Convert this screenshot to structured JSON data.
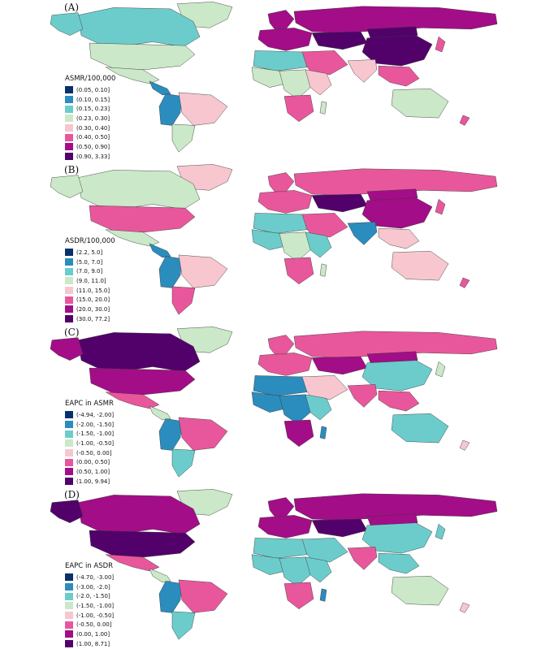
{
  "colors": [
    "#08306b",
    "#2b8cbe",
    "#6ccccc",
    "#cbe8c8",
    "#f7c6cf",
    "#e8579b",
    "#a30d87",
    "#52006a"
  ],
  "panels": [
    {
      "label": "(A)",
      "legend_title": "ASMR/100,000",
      "classes": [
        "(0.05, 0.10]",
        "(0.10, 0.15]",
        "(0.15, 0.23]",
        "(0.23, 0.30]",
        "(0.30, 0.40]",
        "(0.40, 0.50]",
        "(0.50, 0.90]",
        "(0.90, 3.33]"
      ],
      "regions": {
        "greenland": 3,
        "canada": 2,
        "alaska": 2,
        "usa": 3,
        "mexico": 3,
        "central_america": 1,
        "andes": 1,
        "brazil": 4,
        "southern_cone": 3,
        "europe": 6,
        "scandinavia": 6,
        "russia": 6,
        "central_asia": 7,
        "mongolia": 7,
        "china": 7,
        "middle_east": 5,
        "india": 4,
        "southeast_asia": 5,
        "japan": 5,
        "north_africa": 2,
        "west_africa": 3,
        "central_africa": 3,
        "east_africa": 4,
        "southern_africa": 5,
        "madagascar": 3,
        "australia": 3,
        "new_zealand": 5
      }
    },
    {
      "label": "(B)",
      "legend_title": "ASDR/100,000",
      "classes": [
        "(2.2, 5.0]",
        "(5.0, 7.0]",
        "(7.0, 9.0]",
        "(9.0, 11.0]",
        "(11.0, 15.0]",
        "(15.0, 20.0]",
        "(20.0, 30.0]",
        "(30.0, 77.2]"
      ],
      "regions": {
        "greenland": 4,
        "canada": 3,
        "alaska": 3,
        "usa": 5,
        "mexico": 3,
        "central_america": 1,
        "andes": 1,
        "brazil": 4,
        "southern_cone": 5,
        "europe": 5,
        "scandinavia": 5,
        "russia": 5,
        "central_asia": 7,
        "mongolia": 6,
        "china": 6,
        "middle_east": 5,
        "india": 1,
        "southeast_asia": 4,
        "japan": 5,
        "north_africa": 2,
        "west_africa": 2,
        "central_africa": 3,
        "east_africa": 2,
        "southern_africa": 5,
        "madagascar": 3,
        "australia": 4,
        "new_zealand": 5
      }
    },
    {
      "label": "(C)",
      "legend_title": "EAPC in ASMR",
      "classes": [
        "(-4.94, -2.00]",
        "(-2.00, -1.50]",
        "(-1.50, -1.00]",
        "(-1.00, -0.50]",
        "(-0.50, 0.00]",
        "(0.00, 0.50]",
        "(0.50, 1.00]",
        "(1.00, 9.94]"
      ],
      "regions": {
        "greenland": 3,
        "canada": 7,
        "alaska": 6,
        "usa": 6,
        "mexico": 5,
        "central_america": 3,
        "andes": 1,
        "brazil": 5,
        "southern_cone": 2,
        "europe": 5,
        "scandinavia": 5,
        "russia": 5,
        "central_asia": 6,
        "mongolia": 6,
        "china": 2,
        "middle_east": 4,
        "india": 5,
        "southeast_asia": 5,
        "japan": 3,
        "north_africa": 1,
        "west_africa": 1,
        "central_africa": 1,
        "east_africa": 2,
        "southern_africa": 6,
        "madagascar": 1,
        "australia": 2,
        "new_zealand": 4
      }
    },
    {
      "label": "(D)",
      "legend_title": "EAPC in ASDR",
      "classes": [
        "(-4.70, -3.00]",
        "(-3.00, -2.0]",
        "(-2.0, -1.50]",
        "(-1.50, -1.00]",
        "(-1.00, -0.50]",
        "(-0.50, 0.00]",
        "(0.00, 1.00]",
        "(1.00, 8.71]"
      ],
      "regions": {
        "greenland": 3,
        "canada": 6,
        "alaska": 7,
        "usa": 7,
        "mexico": 5,
        "central_america": 3,
        "andes": 1,
        "brazil": 5,
        "southern_cone": 2,
        "europe": 6,
        "scandinavia": 6,
        "russia": 6,
        "central_asia": 7,
        "mongolia": 6,
        "china": 2,
        "middle_east": 2,
        "india": 5,
        "southeast_asia": 2,
        "japan": 2,
        "north_africa": 2,
        "west_africa": 2,
        "central_africa": 2,
        "east_africa": 2,
        "southern_africa": 5,
        "madagascar": 1,
        "australia": 3,
        "new_zealand": 4
      }
    }
  ]
}
